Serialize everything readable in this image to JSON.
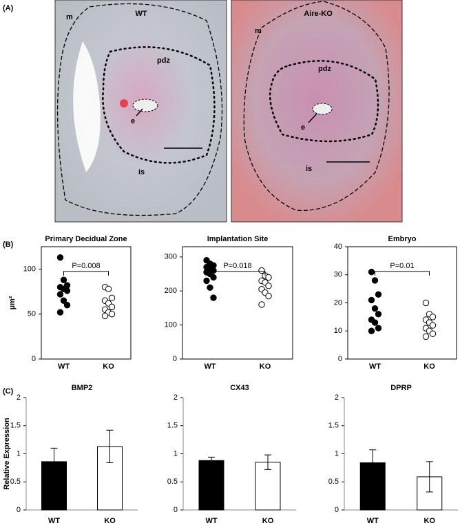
{
  "panel_labels": [
    "(A)",
    "(B)",
    "(C)"
  ],
  "images": [
    {
      "title": "WT",
      "labels": [
        "m",
        "pdz",
        "e",
        "is"
      ]
    },
    {
      "title": "Aire-KO",
      "labels": [
        "m",
        "pdz",
        "e",
        "is"
      ]
    }
  ],
  "chart_data": [
    {
      "type": "strip",
      "title": "Primary Decidual Zone",
      "y_label": "µm²",
      "annotation": "P=0.008",
      "categories": [
        "WT",
        "KO"
      ],
      "colors": [
        "#000000",
        "#ffffff"
      ],
      "values": [
        [
          113,
          88,
          82,
          80,
          78,
          76,
          72,
          65,
          60,
          52
        ],
        [
          80,
          78,
          68,
          65,
          62,
          58,
          55,
          52,
          50,
          48
        ]
      ],
      "ylim": [
        0,
        125
      ],
      "yticks": [
        0,
        50,
        100
      ]
    },
    {
      "type": "strip",
      "title": "Implantation Site",
      "annotation": "P=0.018",
      "categories": [
        "WT",
        "KO"
      ],
      "colors": [
        "#000000",
        "#ffffff"
      ],
      "values": [
        [
          290,
          280,
          275,
          270,
          265,
          260,
          255,
          250,
          240,
          230,
          210,
          180
        ],
        [
          260,
          245,
          240,
          230,
          225,
          215,
          205,
          195,
          185,
          160
        ]
      ],
      "ylim": [
        0,
        330
      ],
      "yticks": [
        0,
        100,
        200,
        300
      ]
    },
    {
      "type": "strip",
      "title": "Embryo",
      "annotation": "P=0.01",
      "categories": [
        "WT",
        "KO"
      ],
      "colors": [
        "#000000",
        "#ffffff"
      ],
      "values": [
        [
          31,
          28,
          23,
          21,
          18,
          16,
          14,
          13,
          11,
          10
        ],
        [
          20,
          16,
          15,
          14,
          13,
          12,
          11,
          10,
          9,
          8
        ]
      ],
      "ylim": [
        0,
        40
      ],
      "yticks": [
        0,
        10,
        20,
        30,
        40
      ]
    },
    {
      "type": "bar",
      "title": "BMP2",
      "y_label": "Relative Expression",
      "categories": [
        "WT",
        "KO"
      ],
      "colors": [
        "#000000",
        "#ffffff"
      ],
      "values": [
        0.86,
        1.13
      ],
      "errors": [
        0.24,
        0.29
      ],
      "ylim": [
        0,
        2
      ],
      "yticks": [
        0,
        0.5,
        1,
        1.5,
        2
      ]
    },
    {
      "type": "bar",
      "title": "CX43",
      "categories": [
        "WT",
        "KO"
      ],
      "colors": [
        "#000000",
        "#ffffff"
      ],
      "values": [
        0.88,
        0.85
      ],
      "errors": [
        0.06,
        0.13
      ],
      "ylim": [
        0,
        2
      ],
      "yticks": [
        0,
        0.5,
        1,
        1.5,
        2
      ]
    },
    {
      "type": "bar",
      "title": "DPRP",
      "categories": [
        "WT",
        "KO"
      ],
      "colors": [
        "#000000",
        "#ffffff"
      ],
      "values": [
        0.84,
        0.59
      ],
      "errors": [
        0.23,
        0.27
      ],
      "ylim": [
        0,
        2
      ],
      "yticks": [
        0,
        0.5,
        1,
        1.5,
        2
      ]
    }
  ]
}
